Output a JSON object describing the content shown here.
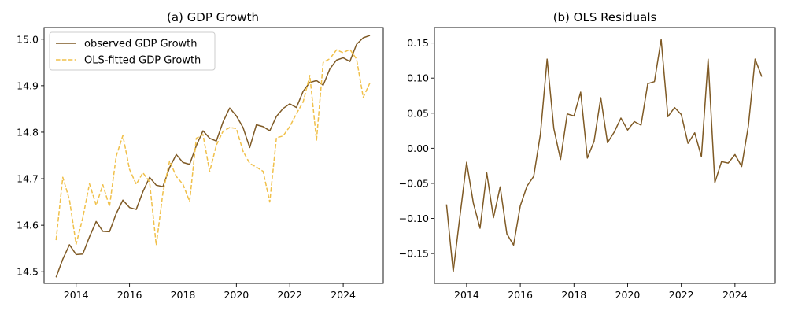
{
  "chart_data": [
    {
      "type": "line",
      "title": "(a) GDP Growth",
      "xlabel": "",
      "ylabel": "",
      "xlim": [
        2012.8,
        2025.5
      ],
      "ylim": [
        14.475,
        15.025
      ],
      "x_ticks": [
        2014,
        2016,
        2018,
        2020,
        2022,
        2024
      ],
      "x_tick_labels": [
        "2014",
        "2016",
        "2018",
        "2020",
        "2022",
        "2024"
      ],
      "y_ticks": [
        14.5,
        14.6,
        14.7,
        14.8,
        14.9,
        15.0
      ],
      "y_tick_labels": [
        "14.5",
        "14.6",
        "14.7",
        "14.8",
        "14.9",
        "15.0"
      ],
      "grid": false,
      "legend": "top-left",
      "x": [
        2013.25,
        2013.5,
        2013.75,
        2014.0,
        2014.25,
        2014.5,
        2014.75,
        2015.0,
        2015.25,
        2015.5,
        2015.75,
        2016.0,
        2016.25,
        2016.5,
        2016.75,
        2017.0,
        2017.25,
        2017.5,
        2017.75,
        2018.0,
        2018.25,
        2018.5,
        2018.75,
        2019.0,
        2019.25,
        2019.5,
        2019.75,
        2020.0,
        2020.25,
        2020.5,
        2020.75,
        2021.0,
        2021.25,
        2021.5,
        2021.75,
        2022.0,
        2022.25,
        2022.5,
        2022.75,
        2023.0,
        2023.25,
        2023.5,
        2023.75,
        2024.0,
        2024.25,
        2024.5,
        2024.75,
        2025.0
      ],
      "series": [
        {
          "name": "observed GDP Growth",
          "color": "#7f5a25",
          "dash": "solid",
          "values": [
            14.488,
            14.527,
            14.558,
            14.537,
            14.538,
            14.575,
            14.608,
            14.587,
            14.586,
            14.625,
            14.654,
            14.638,
            14.634,
            14.672,
            14.703,
            14.686,
            14.683,
            14.724,
            14.752,
            14.735,
            14.731,
            14.771,
            14.803,
            14.787,
            14.781,
            14.822,
            14.852,
            14.835,
            14.81,
            14.767,
            14.816,
            14.812,
            14.803,
            14.834,
            14.851,
            14.861,
            14.853,
            14.888,
            14.907,
            14.911,
            14.901,
            14.936,
            14.955,
            14.96,
            14.952,
            14.989,
            15.003,
            15.008
          ]
        },
        {
          "name": "OLS-fitted GDP Growth",
          "color": "#f0c04a",
          "dash": "dashed",
          "values": [
            14.568,
            14.703,
            14.655,
            14.559,
            14.616,
            14.689,
            14.643,
            14.687,
            14.64,
            14.748,
            14.793,
            14.72,
            14.688,
            14.713,
            14.693,
            14.557,
            14.67,
            14.738,
            14.705,
            14.688,
            14.651,
            14.787,
            14.795,
            14.715,
            14.772,
            14.802,
            14.81,
            14.808,
            14.759,
            14.733,
            14.725,
            14.716,
            14.65,
            14.788,
            14.792,
            14.812,
            14.84,
            14.865,
            14.922,
            14.783,
            14.95,
            14.958,
            14.977,
            14.971,
            14.978,
            14.957,
            14.875,
            14.906
          ]
        }
      ]
    },
    {
      "type": "line",
      "title": "(b) OLS Residuals",
      "xlabel": "",
      "ylabel": "",
      "xlim": [
        2012.8,
        2025.5
      ],
      "ylim": [
        -0.1925,
        0.172
      ],
      "x_ticks": [
        2014,
        2016,
        2018,
        2020,
        2022,
        2024
      ],
      "x_tick_labels": [
        "2014",
        "2016",
        "2018",
        "2020",
        "2022",
        "2024"
      ],
      "y_ticks": [
        -0.15,
        -0.1,
        -0.05,
        0.0,
        0.05,
        0.1,
        0.15
      ],
      "y_tick_labels": [
        "−0.15",
        "−0.10",
        "−0.05",
        "0.00",
        "0.05",
        "0.10",
        "0.15"
      ],
      "grid": false,
      "x": [
        2013.25,
        2013.5,
        2013.75,
        2014.0,
        2014.25,
        2014.5,
        2014.75,
        2015.0,
        2015.25,
        2015.5,
        2015.75,
        2016.0,
        2016.25,
        2016.5,
        2016.75,
        2017.0,
        2017.25,
        2017.5,
        2017.75,
        2018.0,
        2018.25,
        2018.5,
        2018.75,
        2019.0,
        2019.25,
        2019.5,
        2019.75,
        2020.0,
        2020.25,
        2020.5,
        2020.75,
        2021.0,
        2021.25,
        2021.5,
        2021.75,
        2022.0,
        2022.25,
        2022.5,
        2022.75,
        2023.0,
        2023.25,
        2023.5,
        2023.75,
        2024.0,
        2024.25,
        2024.5,
        2024.75,
        2025.0
      ],
      "series": [
        {
          "name": "",
          "color": "#7f5a25",
          "dash": "solid",
          "values": [
            -0.08,
            -0.176,
            -0.097,
            -0.02,
            -0.078,
            -0.114,
            -0.035,
            -0.099,
            -0.055,
            -0.122,
            -0.138,
            -0.082,
            -0.054,
            -0.04,
            0.02,
            0.127,
            0.028,
            -0.016,
            0.049,
            0.046,
            0.08,
            -0.014,
            0.01,
            0.072,
            0.008,
            0.023,
            0.043,
            0.026,
            0.038,
            0.033,
            0.092,
            0.095,
            0.155,
            0.045,
            0.058,
            0.048,
            0.007,
            0.022,
            -0.012,
            0.127,
            -0.049,
            -0.019,
            -0.021,
            -0.009,
            -0.026,
            0.032,
            0.127,
            0.102
          ]
        }
      ]
    }
  ]
}
